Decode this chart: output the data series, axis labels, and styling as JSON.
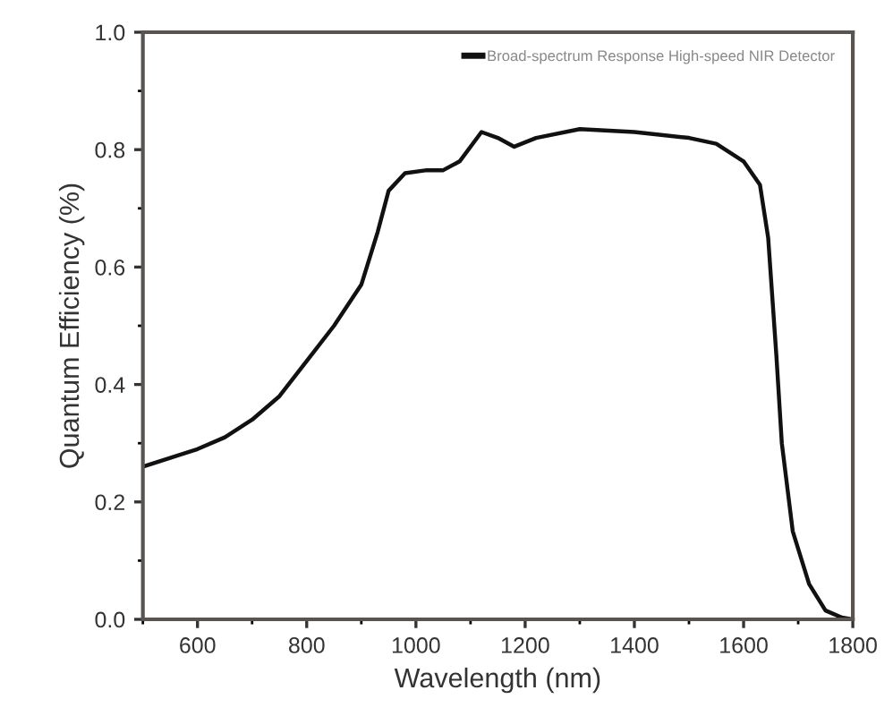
{
  "chart_data": {
    "type": "line",
    "xlabel": "Wavelength (nm)",
    "ylabel": "Quantum Efficiency (%)",
    "x": [
      500,
      550,
      600,
      650,
      700,
      750,
      800,
      850,
      900,
      930,
      950,
      980,
      1020,
      1050,
      1080,
      1120,
      1150,
      1180,
      1220,
      1300,
      1400,
      1500,
      1550,
      1600,
      1630,
      1645,
      1660,
      1670,
      1690,
      1720,
      1750,
      1780,
      1800
    ],
    "series": [
      {
        "name": "Broad-spectrum Response High-speed NIR Detector",
        "color": "#111111",
        "values": [
          0.26,
          0.275,
          0.29,
          0.31,
          0.34,
          0.38,
          0.44,
          0.5,
          0.57,
          0.66,
          0.73,
          0.76,
          0.765,
          0.765,
          0.78,
          0.83,
          0.82,
          0.805,
          0.82,
          0.835,
          0.83,
          0.82,
          0.81,
          0.78,
          0.74,
          0.65,
          0.45,
          0.3,
          0.15,
          0.06,
          0.015,
          0.003,
          0.0
        ]
      }
    ],
    "xlim": [
      500,
      1800
    ],
    "ylim": [
      0,
      1.0
    ],
    "xticks": [
      600,
      800,
      1000,
      1200,
      1400,
      1600,
      1800
    ],
    "yticks": [
      {
        "value": 0,
        "label": "0.0"
      },
      {
        "value": 0.2,
        "label": "0.2"
      },
      {
        "value": 0.4,
        "label": "0.4"
      },
      {
        "value": 0.6,
        "label": "0.6"
      },
      {
        "value": 0.8,
        "label": "0.8"
      },
      {
        "value": 1.0,
        "label": "1.0"
      }
    ],
    "grid": false,
    "legend": "top right",
    "marker": "none",
    "line_style": "solid"
  }
}
